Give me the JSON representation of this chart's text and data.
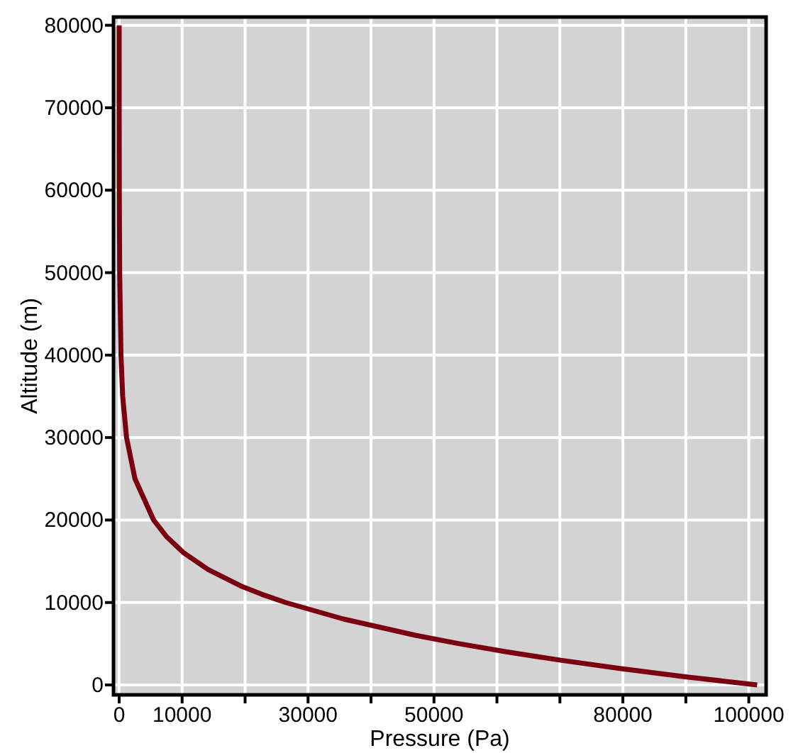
{
  "chart_data": {
    "type": "line",
    "xlabel": "Pressure (Pa)",
    "ylabel": "Altitude (m)",
    "xlim": [
      -900,
      102750
    ],
    "ylim": [
      -1200,
      81000
    ],
    "xticks": [
      0,
      10000,
      {
        "value": 20000,
        "label": null
      },
      30000,
      {
        "value": 40000,
        "label": null
      },
      50000,
      {
        "value": 60000,
        "label": null
      },
      {
        "value": 70000,
        "label": null
      },
      80000,
      {
        "value": 90000,
        "label": null
      },
      100000
    ],
    "yticks": [
      0,
      10000,
      20000,
      30000,
      40000,
      50000,
      60000,
      70000,
      80000
    ],
    "grid": true,
    "marker": "none",
    "line_style": "solid",
    "series": [
      {
        "color": "#7a0010",
        "x": [
          101325,
          89875,
          79495,
          70109,
          61640,
          54020,
          47181,
          35600,
          26436,
          22632,
          19330,
          14102,
          10287,
          7505,
          5475,
          2511,
          1172,
          559,
          287,
          80,
          22,
          5,
          1
        ],
        "values": [
          0,
          1000,
          2000,
          3000,
          4000,
          5000,
          6000,
          8000,
          10000,
          11000,
          12000,
          14000,
          16000,
          18000,
          20000,
          25000,
          30000,
          35000,
          40000,
          50000,
          60000,
          70000,
          80000
        ]
      }
    ]
  }
}
